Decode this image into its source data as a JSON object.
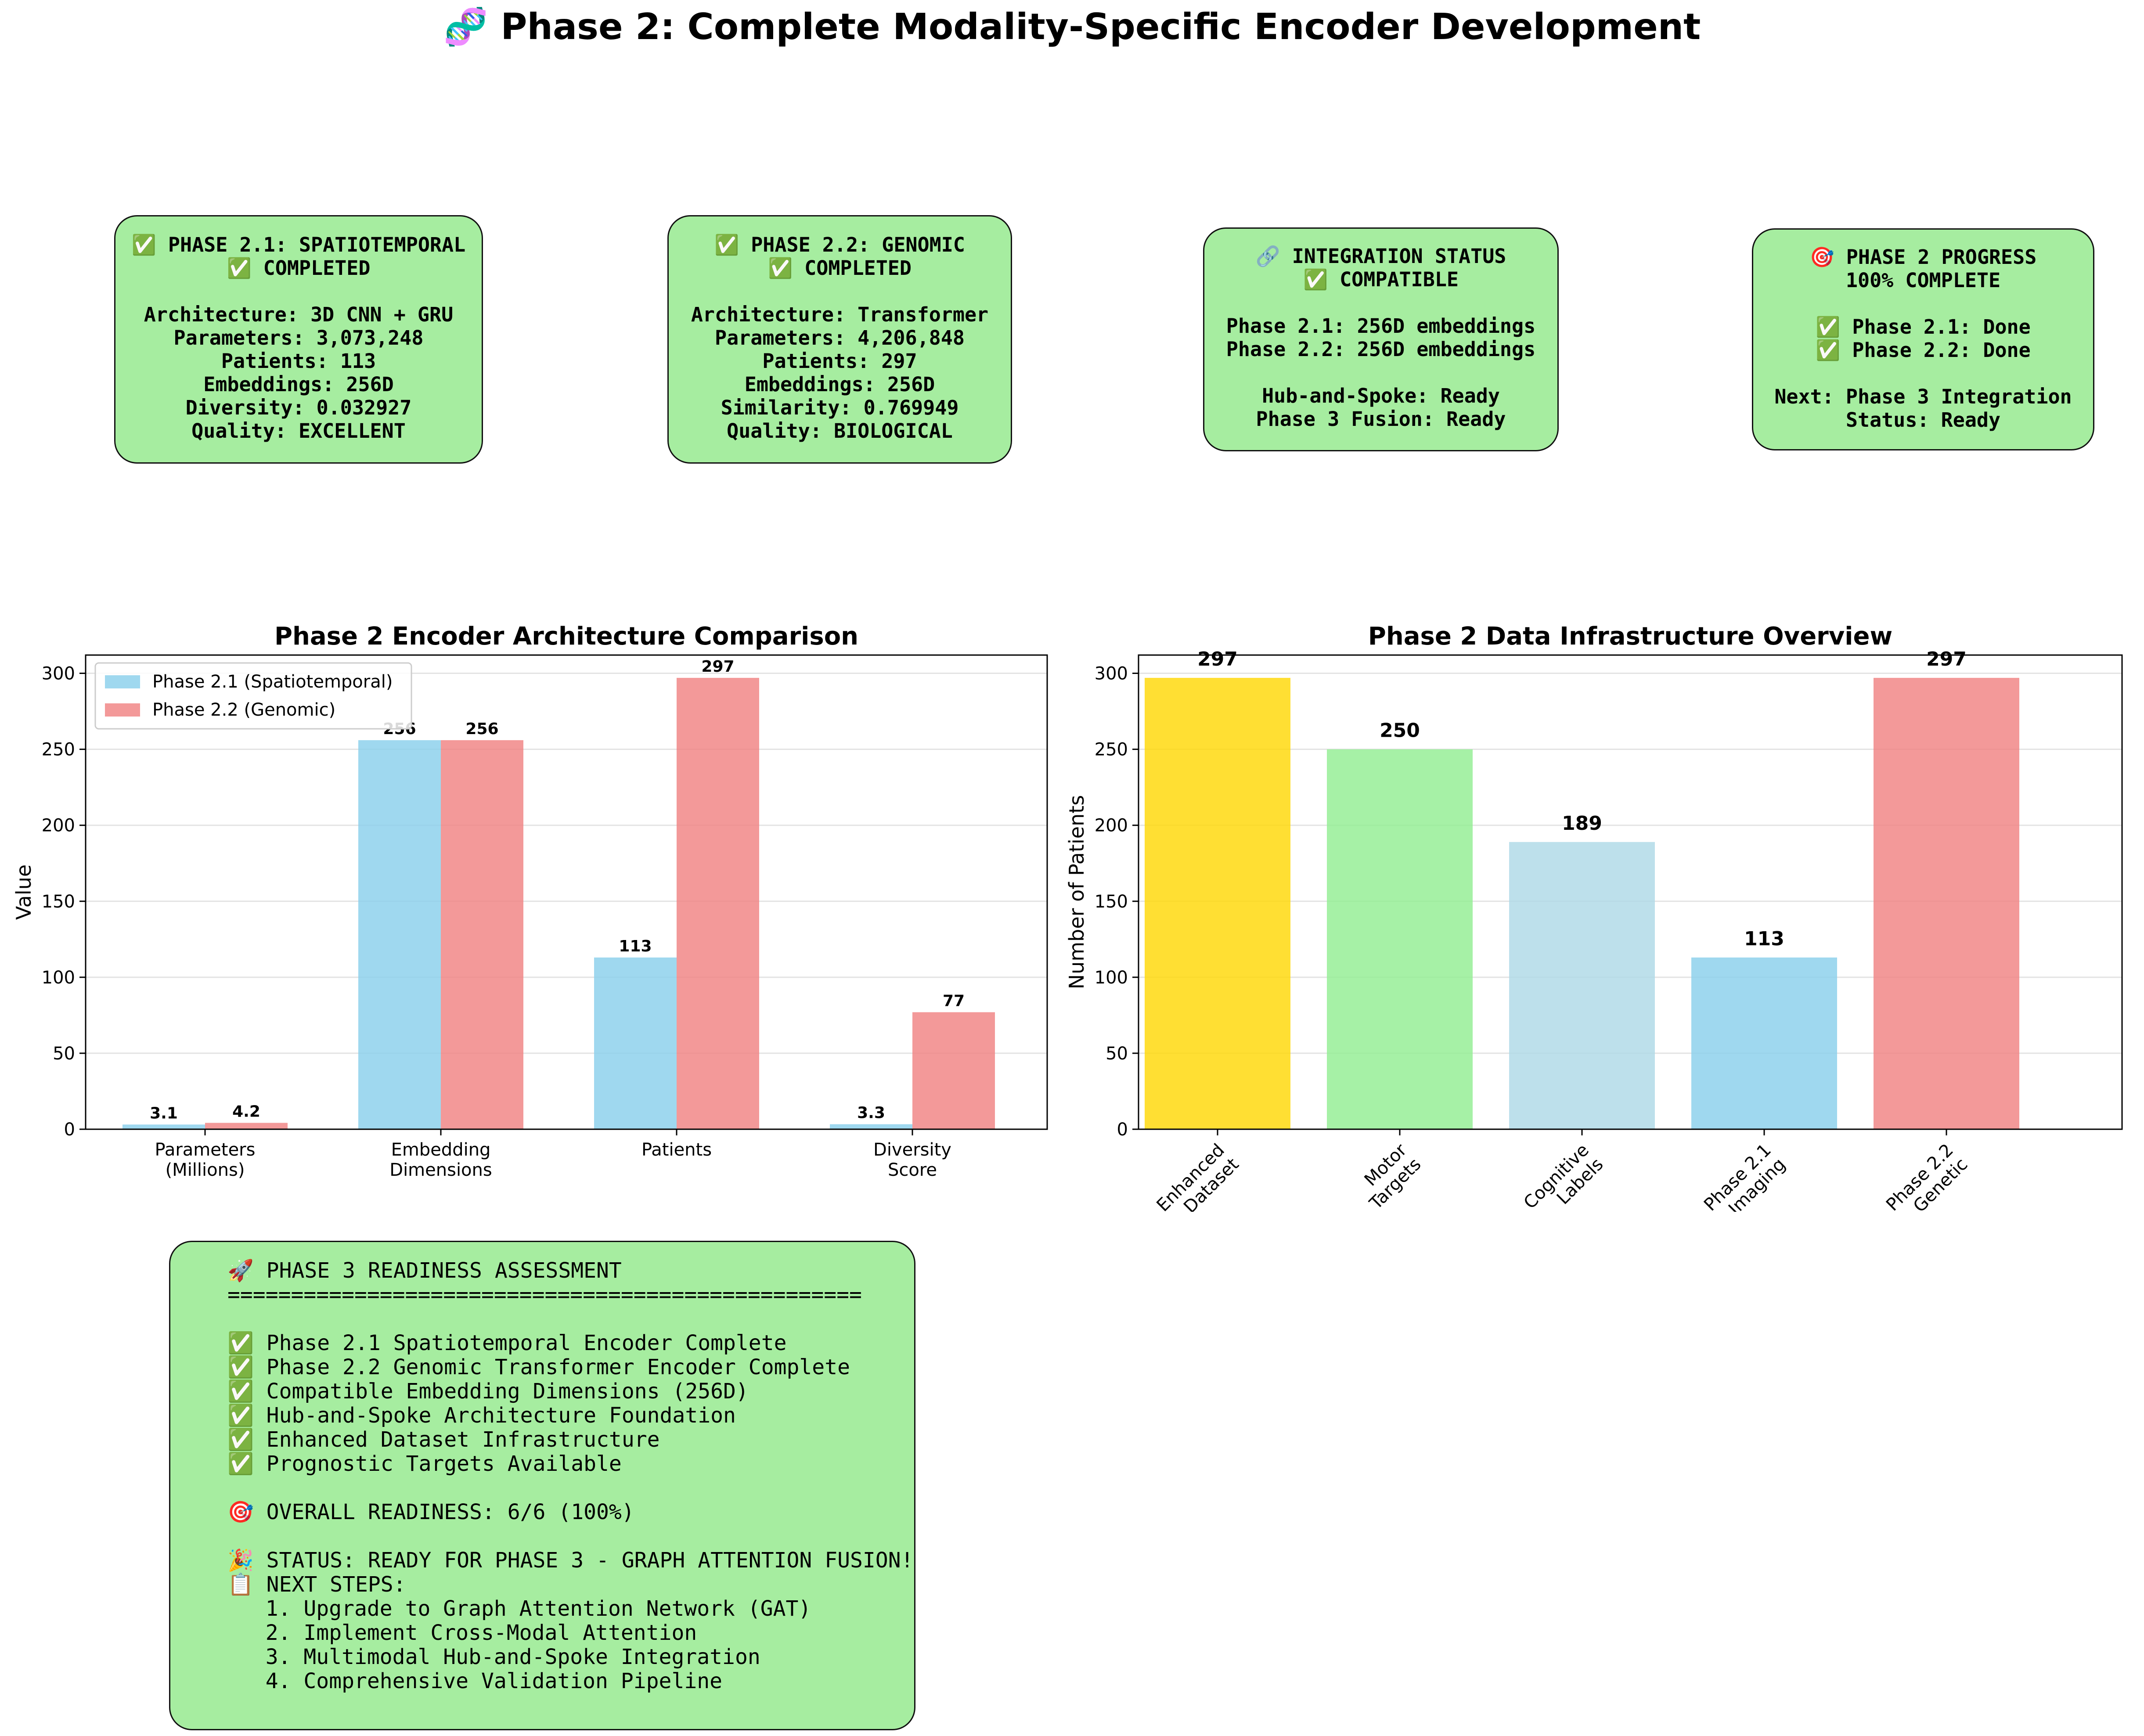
{
  "title": "🧬 Phase 2: Complete Modality-Specific Encoder Development",
  "cards": [
    {
      "lines": [
        "✅ PHASE 2.1: SPATIOTEMPORAL",
        "✅ COMPLETED",
        "",
        "Architecture: 3D CNN + GRU",
        "Parameters: 3,073,248",
        "Patients: 113",
        "Embeddings: 256D",
        "Diversity: 0.032927",
        "Quality: EXCELLENT"
      ]
    },
    {
      "lines": [
        "✅ PHASE 2.2: GENOMIC",
        "✅ COMPLETED",
        "",
        "Architecture: Transformer",
        "Parameters: 4,206,848",
        "Patients: 297",
        "Embeddings: 256D",
        "Similarity: 0.769949",
        "Quality: BIOLOGICAL"
      ]
    },
    {
      "lines": [
        "🔗 INTEGRATION STATUS",
        "✅ COMPATIBLE",
        "",
        "Phase 2.1: 256D embeddings",
        "Phase 2.2: 256D embeddings",
        "",
        "Hub-and-Spoke: Ready",
        "Phase 3 Fusion: Ready"
      ]
    },
    {
      "lines": [
        "🎯 PHASE 2 PROGRESS",
        "100% COMPLETE",
        "",
        "✅ Phase 2.1: Done",
        "✅ Phase 2.2: Done",
        "",
        "Next: Phase 3 Integration",
        "Status: Ready"
      ]
    }
  ],
  "chart_data": [
    {
      "type": "bar",
      "title": "Phase 2 Encoder Architecture Comparison",
      "xlabel": "",
      "ylabel": "Value",
      "categories": [
        "Parameters\n(Millions)",
        "Embedding\nDimensions",
        "Patients",
        "Diversity\nScore"
      ],
      "series": [
        {
          "name": "Phase 2.1 (Spatiotemporal)",
          "color": "#87ceeb",
          "values": [
            3.1,
            256,
            113,
            3.3
          ],
          "labels": [
            "3.1",
            "256",
            "113",
            "3.3"
          ]
        },
        {
          "name": "Phase 2.2 (Genomic)",
          "color": "#f08080",
          "values": [
            4.2,
            256,
            297,
            77
          ],
          "labels": [
            "4.2",
            "256",
            "297",
            "77"
          ]
        }
      ],
      "ylim": [
        0,
        312
      ],
      "yticks": [
        0,
        50,
        100,
        150,
        200,
        250,
        300
      ],
      "grid": true,
      "legend": "upper-left"
    },
    {
      "type": "bar",
      "title": "Phase 2 Data Infrastructure Overview",
      "xlabel": "",
      "ylabel": "Number of Patients",
      "categories": [
        "Enhanced\nDataset",
        "Motor\nTargets",
        "Cognitive\nLabels",
        "Phase 2.1\nImaging",
        "Phase 2.2\nGenetic"
      ],
      "values": [
        297,
        250,
        189,
        113,
        297
      ],
      "labels": [
        "297",
        "250",
        "189",
        "113",
        "297"
      ],
      "colors": [
        "#ffd700",
        "#90ee90",
        "#add8e6",
        "#87ceeb",
        "#f08080"
      ],
      "ylim": [
        0,
        312
      ],
      "yticks": [
        0,
        50,
        100,
        150,
        200,
        250,
        300
      ],
      "grid": true
    }
  ],
  "readiness": {
    "lines": [
      "🚀 PHASE 3 READINESS ASSESSMENT",
      "==================================================",
      "",
      "✅ Phase 2.1 Spatiotemporal Encoder Complete",
      "✅ Phase 2.2 Genomic Transformer Encoder Complete",
      "✅ Compatible Embedding Dimensions (256D)",
      "✅ Hub-and-Spoke Architecture Foundation",
      "✅ Enhanced Dataset Infrastructure",
      "✅ Prognostic Targets Available",
      "",
      "🎯 OVERALL READINESS: 6/6 (100%)",
      "",
      "🎉 STATUS: READY FOR PHASE 3 - GRAPH ATTENTION FUSION!",
      "📋 NEXT STEPS:",
      "   1. Upgrade to Graph Attention Network (GAT)",
      "   2. Implement Cross-Modal Attention",
      "   3. Multimodal Hub-and-Spoke Integration",
      "   4. Comprehensive Validation Pipeline"
    ]
  }
}
